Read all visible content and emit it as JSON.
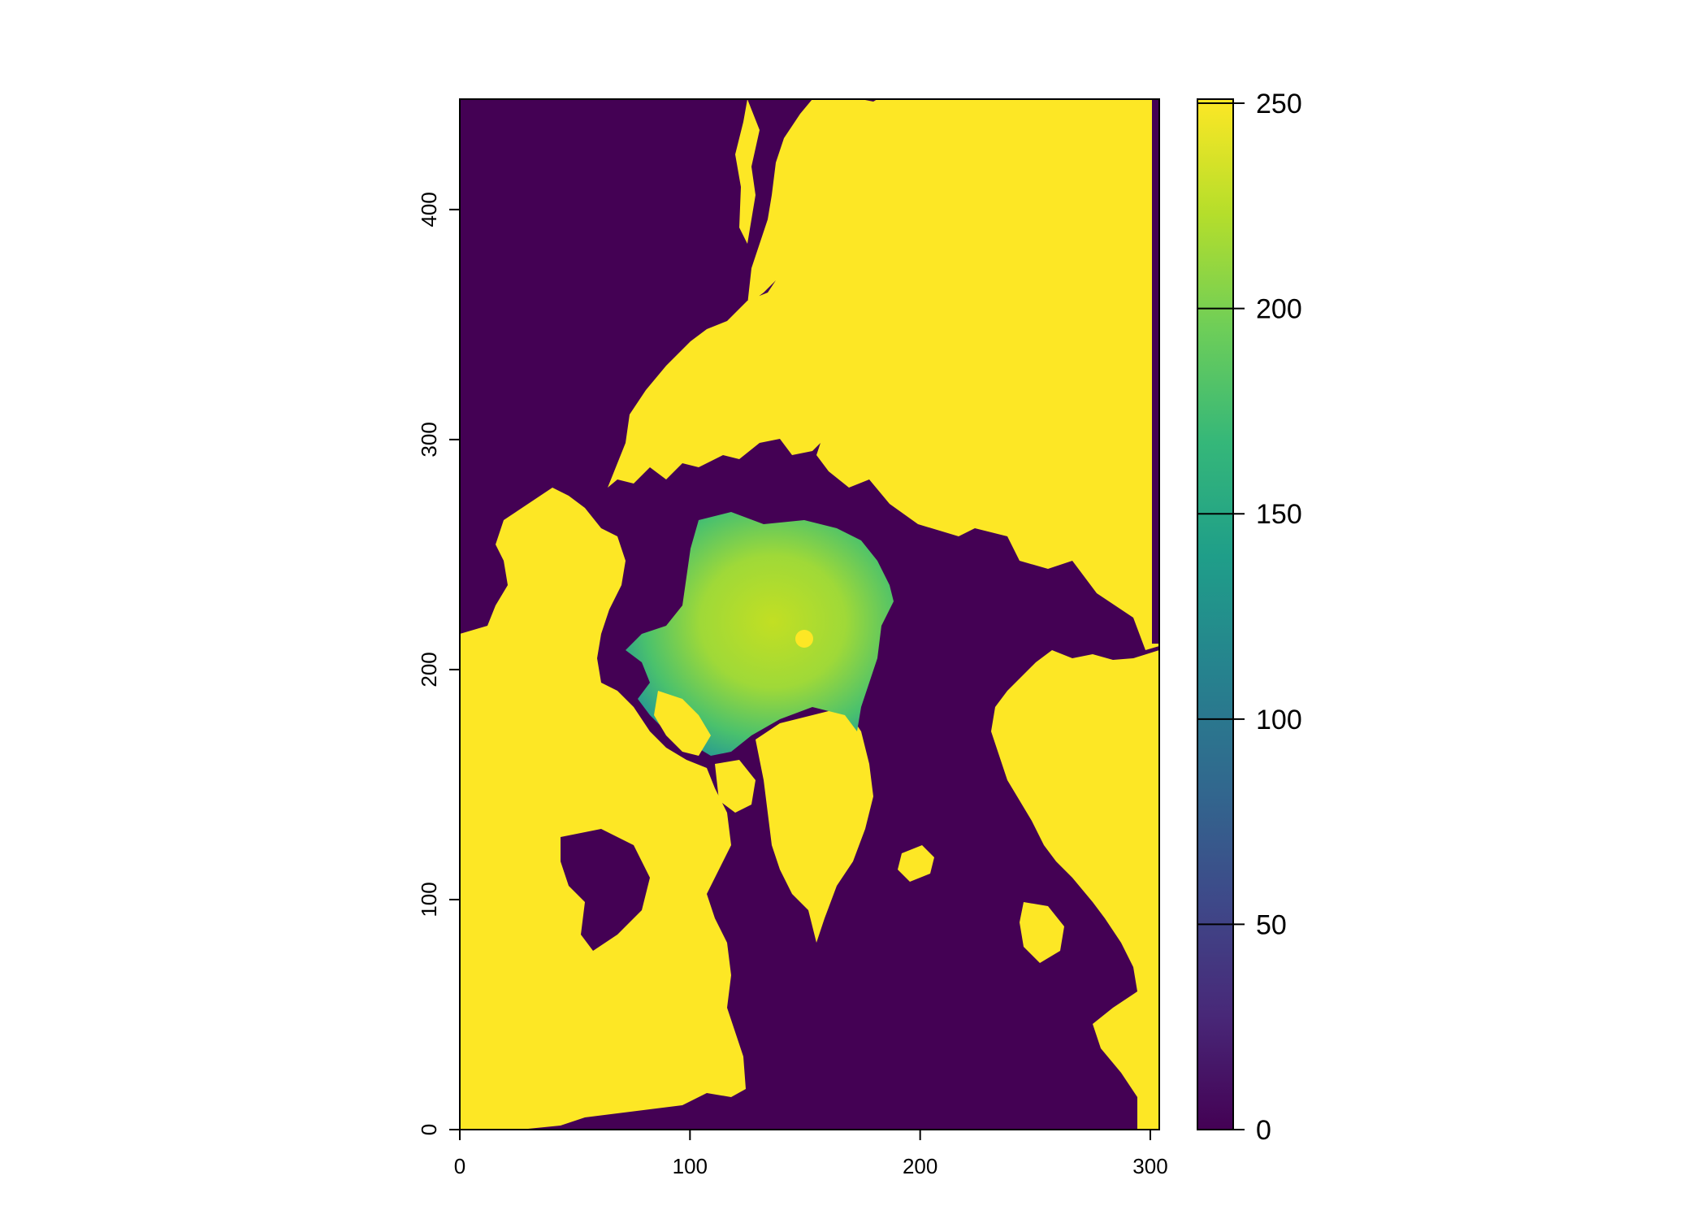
{
  "chart_data": {
    "type": "heatmap",
    "title": "",
    "xlabel": "",
    "ylabel": "",
    "xlim": [
      0,
      304
    ],
    "ylim": [
      0,
      448
    ],
    "x_ticks": [
      0,
      100,
      200,
      300
    ],
    "x_tick_labels": [
      "0",
      "100",
      "200",
      "300"
    ],
    "y_ticks": [
      0,
      100,
      200,
      300,
      400
    ],
    "y_tick_labels": [
      "0",
      "100",
      "200",
      "300",
      "400"
    ],
    "colorbar": {
      "range": [
        0,
        251
      ],
      "ticks": [
        0,
        50,
        100,
        150,
        200,
        250
      ],
      "tick_labels": [
        "0",
        "50",
        "100",
        "150",
        "200",
        "250"
      ],
      "palette": "viridis",
      "colors": [
        "#440154",
        "#482878",
        "#3e4989",
        "#31688e",
        "#26828e",
        "#1f9e89",
        "#35b779",
        "#6ece58",
        "#b5de2b",
        "#fde725"
      ]
    },
    "legend": "right",
    "grid": false,
    "description_values": {
      "ocean_open_water": 0,
      "land_mask": 251,
      "ice_concentration_range": [
        120,
        245
      ]
    }
  }
}
